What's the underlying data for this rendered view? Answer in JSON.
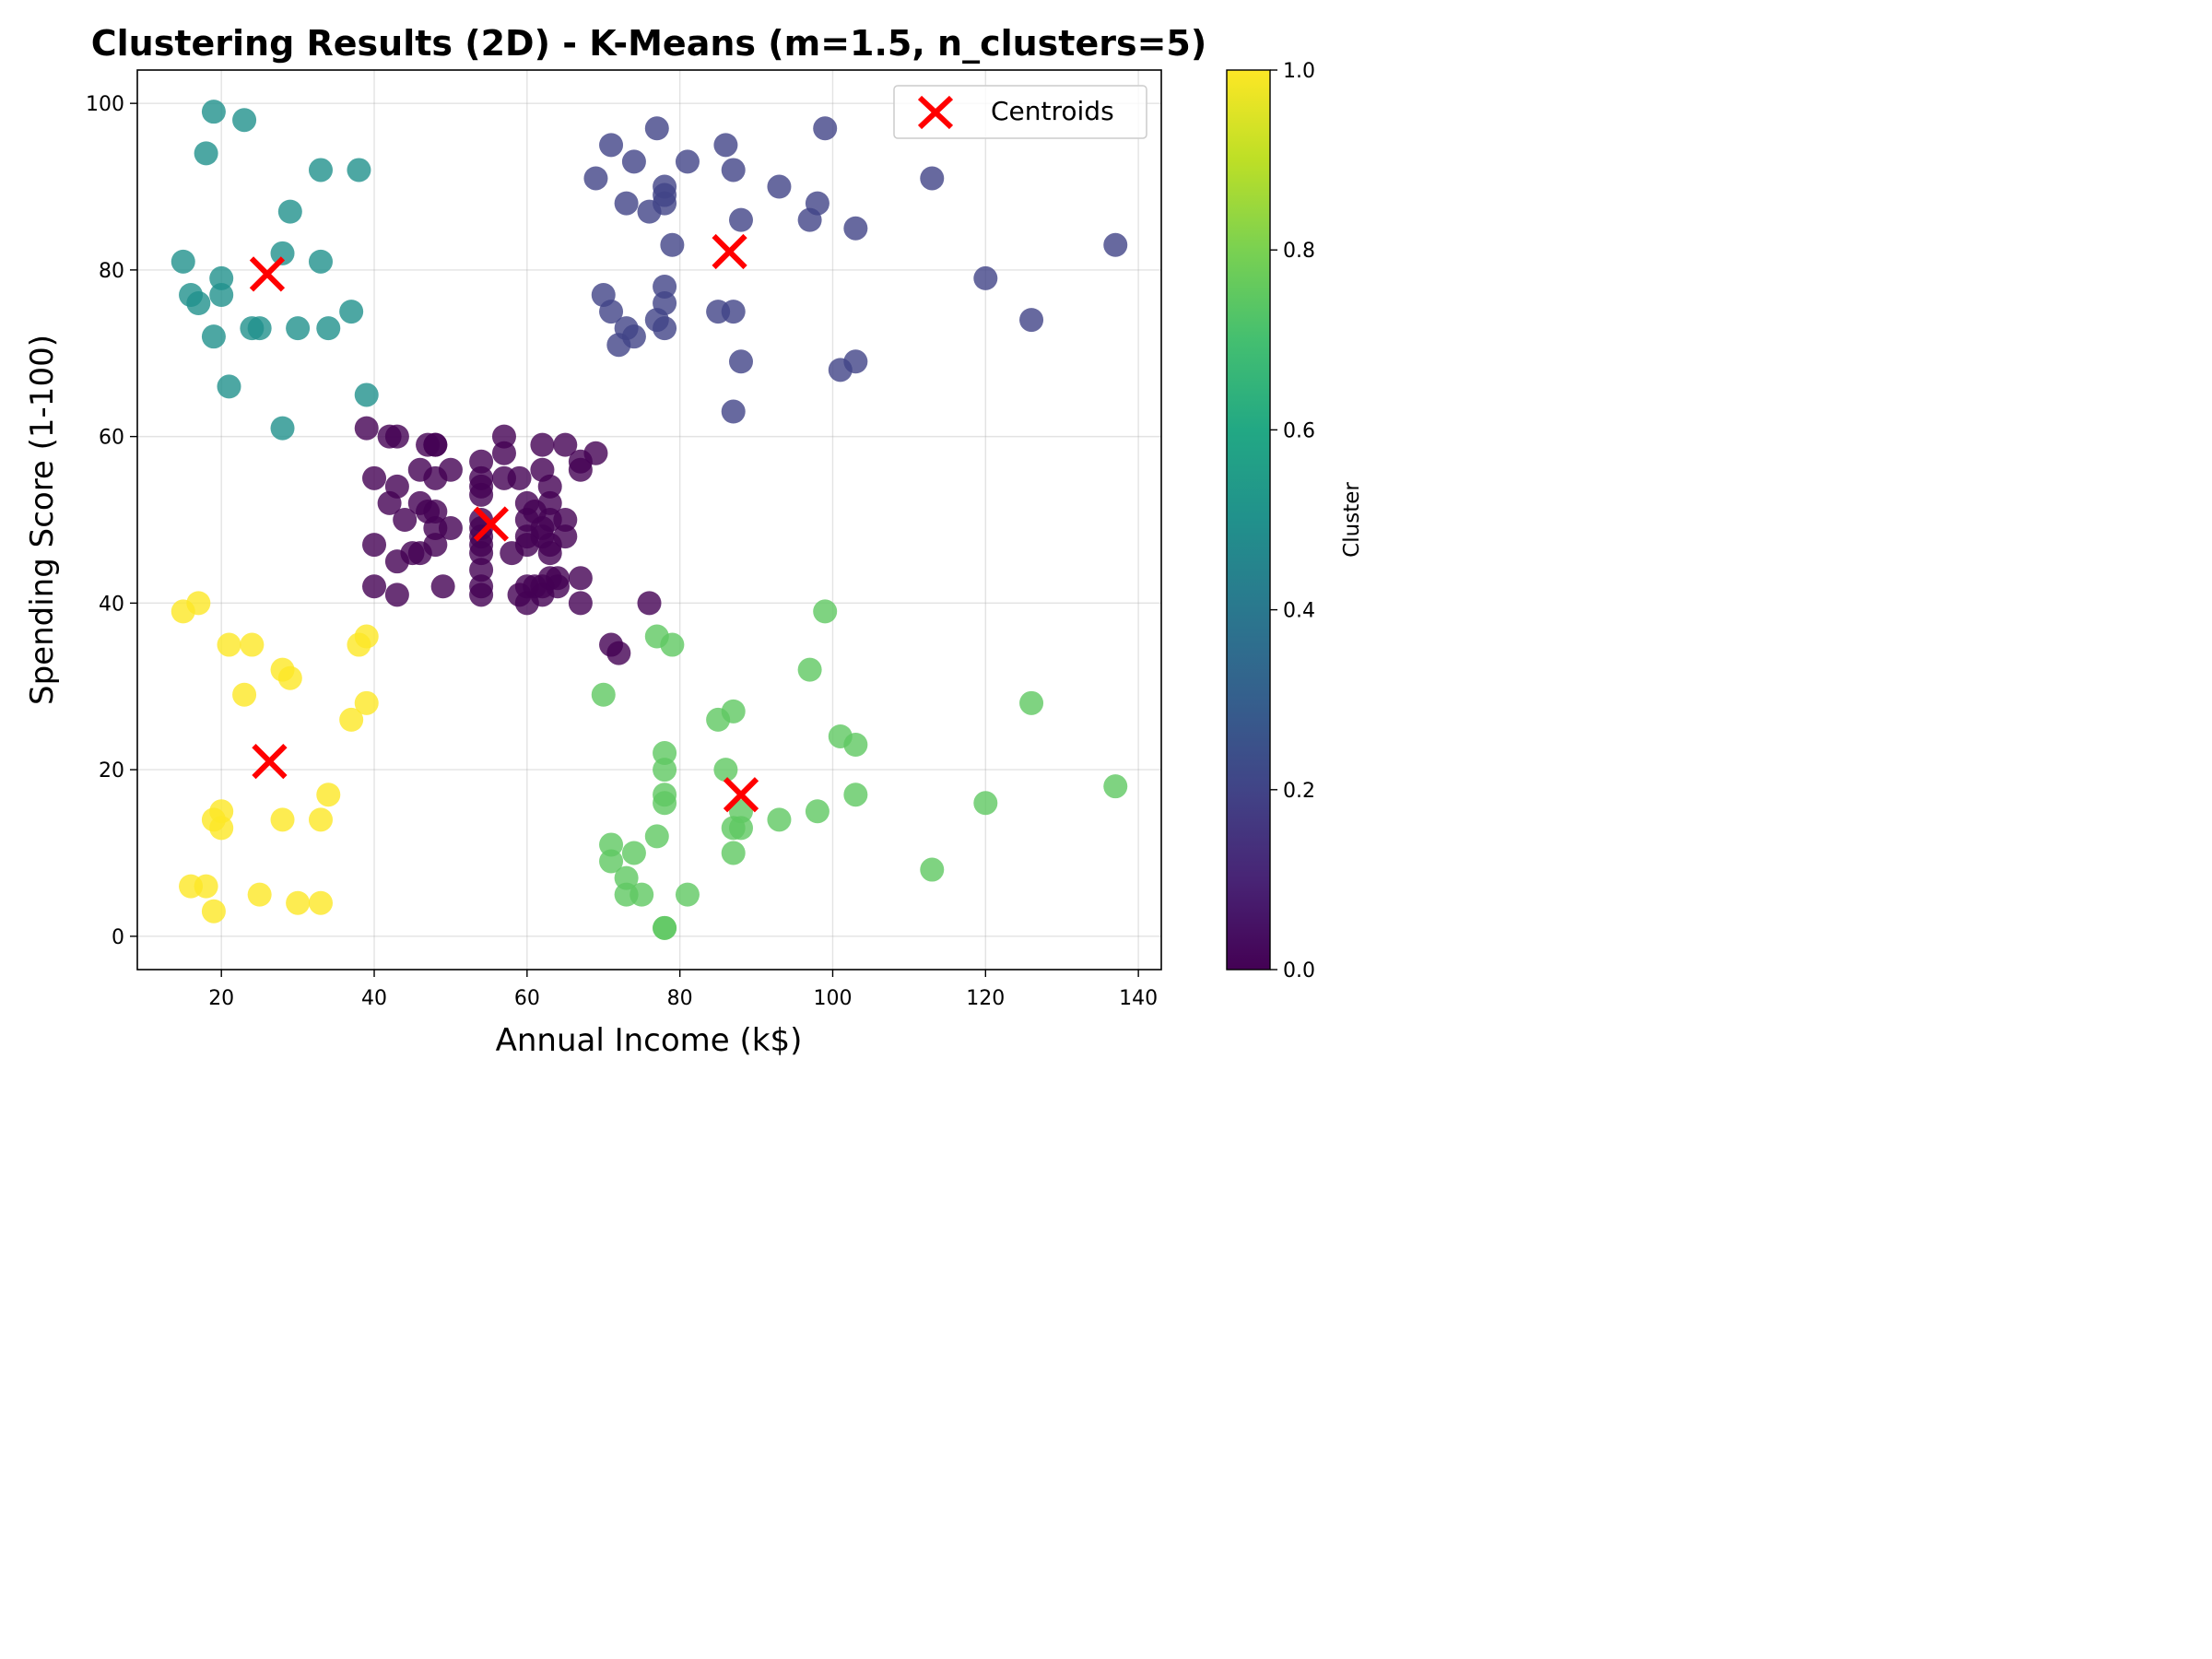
{
  "chart_data": {
    "type": "scatter",
    "title": "Clustering Results (2D) - K-Means (m=1.5, n_clusters=5)",
    "xlabel": "Annual Income (k$)",
    "ylabel": "Spending Score (1-100)",
    "xlim": [
      9,
      143
    ],
    "ylim": [
      -4,
      104
    ],
    "xticks": [
      20,
      40,
      60,
      80,
      100,
      120,
      140
    ],
    "yticks": [
      0,
      20,
      40,
      60,
      80,
      100
    ],
    "grid": true,
    "legend": {
      "position": "top-right",
      "entries": [
        "Centroids"
      ]
    },
    "colorbar": {
      "label": "Cluster",
      "range": [
        0,
        1
      ],
      "ticks": [
        0.0,
        0.2,
        0.4,
        0.6,
        0.8,
        1.0
      ],
      "colormap": "viridis"
    },
    "colors": {
      "cluster_0": "#440154",
      "cluster_1": "#3b528b",
      "cluster_2": "#21918c",
      "cluster_3": "#5ec962",
      "cluster_4": "#fde725",
      "centroid": "#ff0000"
    },
    "series": [
      {
        "cluster_value": 0.0,
        "points": [
          [
            39,
            61
          ],
          [
            42,
            60
          ],
          [
            43,
            60
          ],
          [
            47,
            59
          ],
          [
            48,
            59
          ],
          [
            48,
            59
          ],
          [
            57,
            60
          ],
          [
            62,
            59
          ],
          [
            65,
            59
          ],
          [
            69,
            58
          ],
          [
            57,
            58
          ],
          [
            67,
            57
          ],
          [
            54,
            57
          ],
          [
            46,
            56
          ],
          [
            50,
            56
          ],
          [
            62,
            56
          ],
          [
            67,
            56
          ],
          [
            40,
            55
          ],
          [
            48,
            55
          ],
          [
            54,
            55
          ],
          [
            57,
            55
          ],
          [
            59,
            55
          ],
          [
            63,
            54
          ],
          [
            43,
            54
          ],
          [
            54,
            54
          ],
          [
            47,
            51
          ],
          [
            63,
            52
          ],
          [
            60,
            52
          ],
          [
            42,
            52
          ],
          [
            54,
            53
          ],
          [
            46,
            52
          ],
          [
            48,
            51
          ],
          [
            61,
            51
          ],
          [
            44,
            50
          ],
          [
            50,
            49
          ],
          [
            54,
            50
          ],
          [
            54,
            49
          ],
          [
            60,
            50
          ],
          [
            62,
            49
          ],
          [
            63,
            50
          ],
          [
            65,
            50
          ],
          [
            48,
            49
          ],
          [
            54,
            48
          ],
          [
            60,
            48
          ],
          [
            62,
            48
          ],
          [
            65,
            48
          ],
          [
            48,
            47
          ],
          [
            54,
            47
          ],
          [
            60,
            47
          ],
          [
            63,
            47
          ],
          [
            40,
            47
          ],
          [
            45,
            46
          ],
          [
            46,
            46
          ],
          [
            54,
            46
          ],
          [
            58,
            46
          ],
          [
            63,
            46
          ],
          [
            43,
            45
          ],
          [
            54,
            44
          ],
          [
            63,
            43
          ],
          [
            67,
            43
          ],
          [
            64,
            43
          ],
          [
            40,
            42
          ],
          [
            49,
            42
          ],
          [
            54,
            42
          ],
          [
            60,
            42
          ],
          [
            61,
            42
          ],
          [
            62,
            42
          ],
          [
            64,
            42
          ],
          [
            43,
            41
          ],
          [
            54,
            41
          ],
          [
            59,
            41
          ],
          [
            62,
            41
          ],
          [
            60,
            40
          ],
          [
            67,
            40
          ],
          [
            76,
            40
          ],
          [
            71,
            35
          ],
          [
            72,
            34
          ]
        ]
      },
      {
        "cluster_value": 0.2,
        "points": [
          [
            77,
            97
          ],
          [
            99,
            97
          ],
          [
            71,
            95
          ],
          [
            86,
            95
          ],
          [
            74,
            93
          ],
          [
            81,
            93
          ],
          [
            87,
            92
          ],
          [
            69,
            91
          ],
          [
            113,
            91
          ],
          [
            78,
            90
          ],
          [
            93,
            90
          ],
          [
            78,
            89
          ],
          [
            73,
            88
          ],
          [
            78,
            88
          ],
          [
            98,
            88
          ],
          [
            76,
            87
          ],
          [
            88,
            86
          ],
          [
            97,
            86
          ],
          [
            103,
            85
          ],
          [
            79,
            83
          ],
          [
            137,
            83
          ],
          [
            120,
            79
          ],
          [
            78,
            78
          ],
          [
            70,
            77
          ],
          [
            78,
            76
          ],
          [
            71,
            75
          ],
          [
            85,
            75
          ],
          [
            87,
            75
          ],
          [
            126,
            74
          ],
          [
            77,
            74
          ],
          [
            78,
            73
          ],
          [
            73,
            73
          ],
          [
            74,
            72
          ],
          [
            72,
            71
          ],
          [
            88,
            69
          ],
          [
            103,
            69
          ],
          [
            101,
            68
          ],
          [
            87,
            63
          ]
        ]
      },
      {
        "cluster_value": 0.5,
        "points": [
          [
            19,
            99
          ],
          [
            23,
            98
          ],
          [
            18,
            94
          ],
          [
            33,
            92
          ],
          [
            38,
            92
          ],
          [
            29,
            87
          ],
          [
            28,
            82
          ],
          [
            15,
            81
          ],
          [
            33,
            81
          ],
          [
            20,
            79
          ],
          [
            16,
            77
          ],
          [
            20,
            77
          ],
          [
            17,
            76
          ],
          [
            37,
            75
          ],
          [
            24,
            73
          ],
          [
            25,
            73
          ],
          [
            30,
            73
          ],
          [
            34,
            73
          ],
          [
            19,
            72
          ],
          [
            21,
            66
          ],
          [
            39,
            65
          ],
          [
            28,
            61
          ]
        ]
      },
      {
        "cluster_value": 0.75,
        "points": [
          [
            99,
            39
          ],
          [
            77,
            36
          ],
          [
            79,
            35
          ],
          [
            97,
            32
          ],
          [
            70,
            29
          ],
          [
            126,
            28
          ],
          [
            87,
            27
          ],
          [
            85,
            26
          ],
          [
            101,
            24
          ],
          [
            103,
            23
          ],
          [
            78,
            22
          ],
          [
            78,
            20
          ],
          [
            86,
            20
          ],
          [
            137,
            18
          ],
          [
            78,
            17
          ],
          [
            103,
            17
          ],
          [
            78,
            16
          ],
          [
            120,
            16
          ],
          [
            88,
            15
          ],
          [
            98,
            15
          ],
          [
            93,
            14
          ],
          [
            87,
            13
          ],
          [
            88,
            13
          ],
          [
            77,
            12
          ],
          [
            71,
            11
          ],
          [
            74,
            10
          ],
          [
            87,
            10
          ],
          [
            71,
            9
          ],
          [
            113,
            8
          ],
          [
            73,
            7
          ],
          [
            73,
            5
          ],
          [
            75,
            5
          ],
          [
            81,
            5
          ],
          [
            78,
            1
          ],
          [
            78,
            1
          ]
        ]
      },
      {
        "cluster_value": 1.0,
        "points": [
          [
            17,
            40
          ],
          [
            15,
            39
          ],
          [
            39,
            36
          ],
          [
            21,
            35
          ],
          [
            24,
            35
          ],
          [
            38,
            35
          ],
          [
            28,
            32
          ],
          [
            29,
            31
          ],
          [
            39,
            28
          ],
          [
            37,
            26
          ],
          [
            23,
            29
          ],
          [
            34,
            17
          ],
          [
            20,
            15
          ],
          [
            19,
            14
          ],
          [
            28,
            14
          ],
          [
            33,
            14
          ],
          [
            20,
            13
          ],
          [
            16,
            6
          ],
          [
            18,
            6
          ],
          [
            25,
            5
          ],
          [
            30,
            4
          ],
          [
            33,
            4
          ],
          [
            19,
            3
          ]
        ]
      }
    ],
    "centroids": {
      "name": "Centroids",
      "points": [
        [
          26,
          79.5
        ],
        [
          86.5,
          82.2
        ],
        [
          55.3,
          49.5
        ],
        [
          26.3,
          21
        ],
        [
          88,
          17
        ]
      ]
    }
  }
}
